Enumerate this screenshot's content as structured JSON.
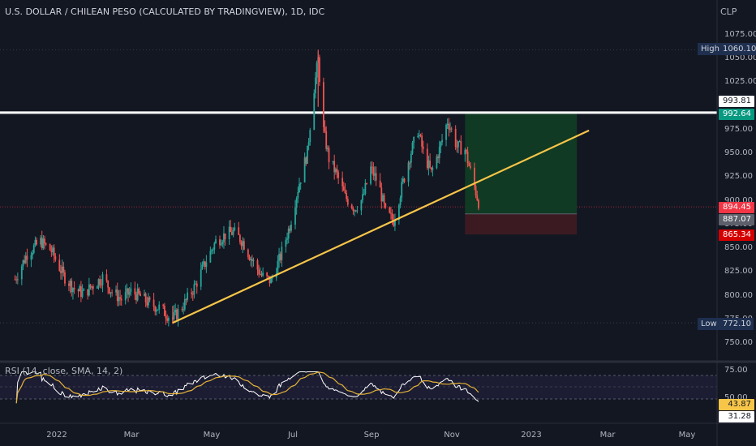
{
  "header": {
    "title": "U.S. DOLLAR / CHILEAN PESO (CALCULATED BY TRADINGVIEW), 1D, IDC",
    "currency": "CLP"
  },
  "price_axis": {
    "ticks": [
      "1075.00",
      "1050.00",
      "1025.00",
      "975.00",
      "950.00",
      "925.00",
      "900.00",
      "875.00",
      "850.00",
      "825.00",
      "800.00",
      "775.00",
      "750.00"
    ],
    "tick_values": [
      1075,
      1050,
      1025,
      975,
      950,
      925,
      900,
      875,
      850,
      825,
      800,
      775,
      750
    ]
  },
  "tags": {
    "high_label": "High",
    "high_value": "1060.10",
    "low_label": "Low",
    "low_value": "772.10",
    "level": "993.81",
    "target": "992.64",
    "last": "894.45",
    "entry": "887.07",
    "stop": "865.34"
  },
  "rsi": {
    "title": "RSI (14, close, SMA, 14, 2)",
    "ticks": [
      "75.00",
      "50.00"
    ],
    "value": "43.87",
    "sma_value": "31.28"
  },
  "time_axis": {
    "labels": [
      "2022",
      "Mar",
      "May",
      "Jul",
      "Sep",
      "Nov",
      "2023",
      "Mar",
      "May"
    ]
  },
  "colors": {
    "background": "#131722",
    "up": "#26a69a",
    "down": "#ef5350",
    "trendline": "#f7c548",
    "horizontal_line": "#ffffff",
    "target_zone": "#103a23",
    "stop_zone": "#3c1a22",
    "rsi_line": "#ffffff",
    "rsi_sma": "#e5b236"
  },
  "chart_data": {
    "type": "candlestick",
    "symbol": "USDCLP",
    "interval": "1D",
    "high": 1060.1,
    "low": 772.1,
    "last": 894.45,
    "horizontal_level": 993.81,
    "position": {
      "entry": 887.07,
      "target": 992.64,
      "stop": 865.34
    },
    "trendline": {
      "from": {
        "date": "2022-03-28",
        "price": 772.1
      },
      "to": {
        "date": "2023-01-31",
        "price": 975
      }
    },
    "close_path": [
      {
        "date": "2021-12-01",
        "close": 818
      },
      {
        "date": "2021-12-10",
        "close": 845
      },
      {
        "date": "2021-12-20",
        "close": 858
      },
      {
        "date": "2021-12-28",
        "close": 848
      },
      {
        "date": "2022-01-06",
        "close": 822
      },
      {
        "date": "2022-01-14",
        "close": 808
      },
      {
        "date": "2022-01-21",
        "close": 803
      },
      {
        "date": "2022-01-28",
        "close": 812
      },
      {
        "date": "2022-02-04",
        "close": 820
      },
      {
        "date": "2022-02-11",
        "close": 805
      },
      {
        "date": "2022-02-18",
        "close": 797
      },
      {
        "date": "2022-02-25",
        "close": 805
      },
      {
        "date": "2022-03-04",
        "close": 800
      },
      {
        "date": "2022-03-11",
        "close": 792
      },
      {
        "date": "2022-03-18",
        "close": 788
      },
      {
        "date": "2022-03-28",
        "close": 776
      },
      {
        "date": "2022-04-06",
        "close": 793
      },
      {
        "date": "2022-04-14",
        "close": 812
      },
      {
        "date": "2022-04-22",
        "close": 838
      },
      {
        "date": "2022-04-29",
        "close": 858
      },
      {
        "date": "2022-05-06",
        "close": 865
      },
      {
        "date": "2022-05-12",
        "close": 868
      },
      {
        "date": "2022-05-19",
        "close": 858
      },
      {
        "date": "2022-05-26",
        "close": 838
      },
      {
        "date": "2022-06-02",
        "close": 822
      },
      {
        "date": "2022-06-09",
        "close": 816
      },
      {
        "date": "2022-06-16",
        "close": 842
      },
      {
        "date": "2022-06-23",
        "close": 875
      },
      {
        "date": "2022-06-30",
        "close": 920
      },
      {
        "date": "2022-07-06",
        "close": 952
      },
      {
        "date": "2022-07-10",
        "close": 1010
      },
      {
        "date": "2022-07-14",
        "close": 1050
      },
      {
        "date": "2022-07-18",
        "close": 975
      },
      {
        "date": "2022-07-22",
        "close": 945
      },
      {
        "date": "2022-07-28",
        "close": 928
      },
      {
        "date": "2022-08-03",
        "close": 905
      },
      {
        "date": "2022-08-10",
        "close": 893
      },
      {
        "date": "2022-08-16",
        "close": 903
      },
      {
        "date": "2022-08-22",
        "close": 935
      },
      {
        "date": "2022-08-28",
        "close": 918
      },
      {
        "date": "2022-09-02",
        "close": 888
      },
      {
        "date": "2022-09-08",
        "close": 880
      },
      {
        "date": "2022-09-14",
        "close": 915
      },
      {
        "date": "2022-09-20",
        "close": 948
      },
      {
        "date": "2022-09-26",
        "close": 975
      },
      {
        "date": "2022-09-30",
        "close": 952
      },
      {
        "date": "2022-10-06",
        "close": 930
      },
      {
        "date": "2022-10-12",
        "close": 955
      },
      {
        "date": "2022-10-18",
        "close": 985
      },
      {
        "date": "2022-10-21",
        "close": 975
      },
      {
        "date": "2022-10-25",
        "close": 958
      },
      {
        "date": "2022-10-31",
        "close": 955
      },
      {
        "date": "2022-11-04",
        "close": 932
      },
      {
        "date": "2022-11-09",
        "close": 905
      },
      {
        "date": "2022-11-11",
        "close": 894.45
      }
    ]
  }
}
